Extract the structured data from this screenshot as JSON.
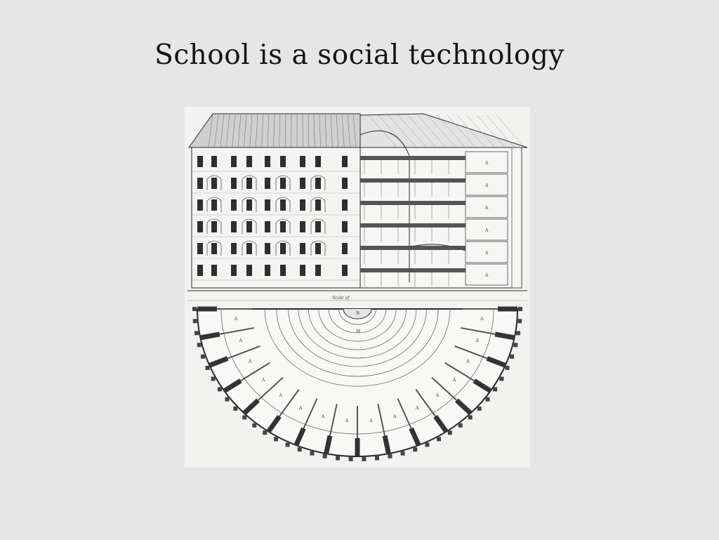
{
  "slide": {
    "title": "School is a social technology",
    "background_color": "#e6e6e6",
    "text_color": "#141414"
  },
  "figure": {
    "label_n": "N",
    "label_m": "M",
    "scale_caption": "Scale of",
    "section_labels": [
      "A",
      "A",
      "A",
      "A",
      "A",
      "A"
    ],
    "plan_labels": [
      "A",
      "A",
      "A",
      "A",
      "A",
      "A",
      "A",
      "A",
      "A",
      "A",
      "A",
      "A",
      "A",
      "A",
      "A",
      "A"
    ],
    "ink_color": "#2a2a2a",
    "paper_color": "#f2f2f0"
  }
}
